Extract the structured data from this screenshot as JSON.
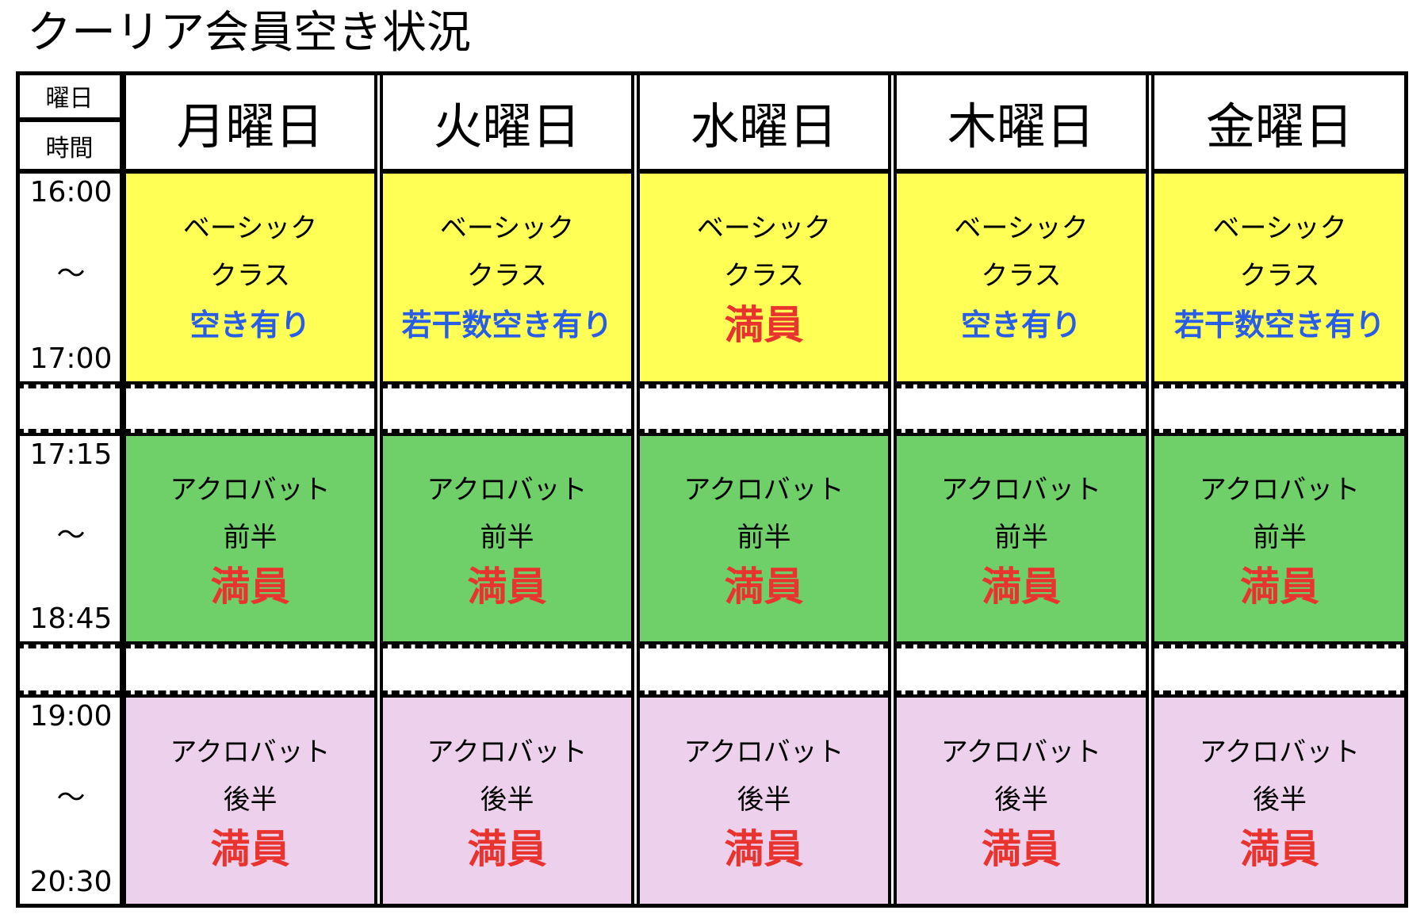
{
  "title": "クーリア会員空き状況",
  "corner": {
    "top": "曜日",
    "bottom": "時間"
  },
  "days": [
    "月曜日",
    "火曜日",
    "水曜日",
    "木曜日",
    "金曜日"
  ],
  "colors": {
    "basic": "#ffff55",
    "acro_first": "#6fcf68",
    "acro_second": "#ecd0ec",
    "full": "#e8332e",
    "open": "#2a5de6"
  },
  "slots": [
    {
      "start": "16:00",
      "sep": "～",
      "end": "17:00",
      "color_key": "basic",
      "cells": [
        {
          "line1": "ベーシック",
          "line2": "クラス",
          "status": "空き有り",
          "kind": "open"
        },
        {
          "line1": "ベーシック",
          "line2": "クラス",
          "status": "若干数空き有り",
          "kind": "open"
        },
        {
          "line1": "ベーシック",
          "line2": "クラス",
          "status": "満員",
          "kind": "full"
        },
        {
          "line1": "ベーシック",
          "line2": "クラス",
          "status": "空き有り",
          "kind": "open"
        },
        {
          "line1": "ベーシック",
          "line2": "クラス",
          "status": "若干数空き有り",
          "kind": "open"
        }
      ]
    },
    {
      "start": "17:15",
      "sep": "～",
      "end": "18:45",
      "color_key": "acro_first",
      "cells": [
        {
          "line1": "アクロバット",
          "line2": "前半",
          "status": "満員",
          "kind": "full"
        },
        {
          "line1": "アクロバット",
          "line2": "前半",
          "status": "満員",
          "kind": "full"
        },
        {
          "line1": "アクロバット",
          "line2": "前半",
          "status": "満員",
          "kind": "full"
        },
        {
          "line1": "アクロバット",
          "line2": "前半",
          "status": "満員",
          "kind": "full"
        },
        {
          "line1": "アクロバット",
          "line2": "前半",
          "status": "満員",
          "kind": "full"
        }
      ]
    },
    {
      "start": "19:00",
      "sep": "～",
      "end": "20:30",
      "color_key": "acro_second",
      "cells": [
        {
          "line1": "アクロバット",
          "line2": "後半",
          "status": "満員",
          "kind": "full"
        },
        {
          "line1": "アクロバット",
          "line2": "後半",
          "status": "満員",
          "kind": "full"
        },
        {
          "line1": "アクロバット",
          "line2": "後半",
          "status": "満員",
          "kind": "full"
        },
        {
          "line1": "アクロバット",
          "line2": "後半",
          "status": "満員",
          "kind": "full"
        },
        {
          "line1": "アクロバット",
          "line2": "後半",
          "status": "満員",
          "kind": "full"
        }
      ]
    }
  ]
}
